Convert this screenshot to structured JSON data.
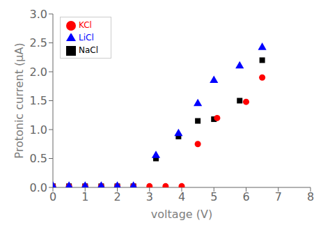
{
  "chart_data": {
    "type": "scatter",
    "xlabel": "voltage (V)",
    "ylabel": "Protonic current (μA)",
    "series": [
      {
        "name": "NaCl",
        "color": "black",
        "marker": "square",
        "x": [
          0.0,
          0.5,
          1.0,
          1.5,
          2.0,
          2.5,
          3.2,
          3.9,
          4.5,
          5.0,
          5.8,
          6.5
        ],
        "values": [
          0.02,
          0.02,
          0.02,
          0.02,
          0.02,
          0.02,
          0.5,
          0.88,
          1.15,
          1.18,
          1.5,
          2.2
        ]
      },
      {
        "name": "KCl",
        "color": "red",
        "marker": "circle",
        "x": [
          0.0,
          0.5,
          1.0,
          1.5,
          2.0,
          2.5,
          3.0,
          3.5,
          4.0,
          4.5,
          5.1,
          6.0,
          6.5
        ],
        "values": [
          0.02,
          0.02,
          0.02,
          0.02,
          0.02,
          0.02,
          0.02,
          0.02,
          0.02,
          0.75,
          1.2,
          1.48,
          1.9
        ]
      },
      {
        "name": "LiCl",
        "color": "blue",
        "marker": "triangle",
        "x": [
          0.0,
          0.5,
          1.0,
          1.5,
          2.0,
          2.5,
          3.2,
          3.9,
          4.5,
          5.0,
          5.8,
          6.5
        ],
        "values": [
          0.02,
          0.02,
          0.02,
          0.02,
          0.02,
          0.02,
          0.55,
          0.93,
          1.45,
          1.85,
          2.1,
          2.42
        ]
      }
    ],
    "xlim": [
      0,
      8
    ],
    "ylim": [
      0,
      3
    ],
    "xticks": [
      0,
      1,
      2,
      3,
      4,
      5,
      6,
      7,
      8
    ],
    "yticks": [
      {
        "value": 0,
        "label": "0.0"
      },
      0.5,
      {
        "value": 1,
        "label": "1.0"
      },
      1.5,
      {
        "value": 2,
        "label": "2.0"
      },
      2.5,
      {
        "value": 3,
        "label": "3.0"
      }
    ],
    "grid": false,
    "legend": "upper left"
  }
}
